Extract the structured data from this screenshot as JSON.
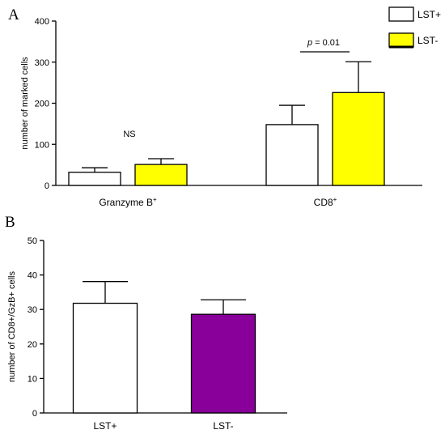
{
  "chart_data": [
    {
      "panel": "A",
      "type": "bar",
      "categories": [
        {
          "main": "Granzyme B",
          "sup": "+"
        },
        {
          "main": "CD8",
          "sup": "+"
        }
      ],
      "series": [
        {
          "name": "LST+",
          "color": "#ffffff",
          "values": [
            32,
            148
          ],
          "errors": [
            11,
            47
          ]
        },
        {
          "name": "LST-",
          "color": "#ffff00",
          "values": [
            51,
            226
          ],
          "errors": [
            14,
            75
          ]
        }
      ],
      "ylabel": "number of marked cells",
      "ylim": [
        0,
        400
      ],
      "yticks": [
        0,
        100,
        200,
        300,
        400
      ],
      "legend_position": "top-right",
      "grid": false,
      "annotations": {
        "ns": "NS",
        "p_prefix": "p",
        "p_suffix": " = 0.01"
      }
    },
    {
      "panel": "B",
      "type": "bar",
      "categories": [
        "LST+",
        "LST-"
      ],
      "values": [
        31.8,
        28.6
      ],
      "errors": [
        6.3,
        4.2
      ],
      "colors": [
        "#ffffff",
        "#880099"
      ],
      "ylabel": "number of CD8+/GzB+ cells",
      "ylim": [
        0,
        50
      ],
      "yticks": [
        0,
        10,
        20,
        30,
        40,
        50
      ],
      "grid": false
    }
  ]
}
